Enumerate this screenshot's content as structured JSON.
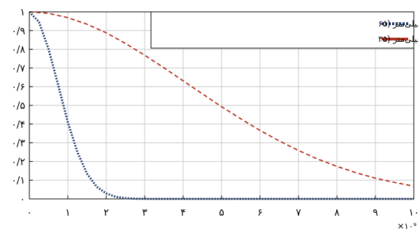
{
  "chart_data": {
    "type": "line",
    "title": "",
    "xlabel": "",
    "ylabel": "",
    "x_multiplier": "×۱۰⁹",
    "xlim": [
      0,
      10
    ],
    "ylim": [
      0,
      1
    ],
    "grid": true,
    "x_ticks": [
      {
        "value": 0,
        "label": "۰"
      },
      {
        "value": 1,
        "label": "۱"
      },
      {
        "value": 2,
        "label": "۲"
      },
      {
        "value": 3,
        "label": "۳"
      },
      {
        "value": 4,
        "label": "۴"
      },
      {
        "value": 5,
        "label": "۵"
      },
      {
        "value": 6,
        "label": "۶"
      },
      {
        "value": 7,
        "label": "۷"
      },
      {
        "value": 8,
        "label": "۸"
      },
      {
        "value": 9,
        "label": "۹"
      },
      {
        "value": 10,
        "label": "۱۰"
      }
    ],
    "y_ticks": [
      {
        "value": 0,
        "label": "۰"
      },
      {
        "value": 0.1,
        "label": "۰/۱"
      },
      {
        "value": 0.2,
        "label": "۰/۲"
      },
      {
        "value": 0.3,
        "label": "۰/۳"
      },
      {
        "value": 0.4,
        "label": "۰/۴"
      },
      {
        "value": 0.5,
        "label": "۰/۵"
      },
      {
        "value": 0.6,
        "label": "۰/۶"
      },
      {
        "value": 0.7,
        "label": "۰/۷"
      },
      {
        "value": 0.8,
        "label": "۰/۸"
      },
      {
        "value": 0.9,
        "label": "۰/۹"
      },
      {
        "value": 1,
        "label": "۱"
      }
    ],
    "legend_position": "top-right",
    "series": [
      {
        "name": "فاکتور شکل خوشه الکترونی با طول ۵۰ میلی‌متر (۶۵",
        "color": "#1f3a6e",
        "style": "dotted",
        "x": [
          0,
          0.25,
          0.5,
          0.75,
          1.0,
          1.25,
          1.5,
          1.75,
          2.0,
          2.25,
          2.5,
          2.75,
          3.0,
          3.25,
          3.5,
          4.0,
          5.0,
          6.0,
          7.0,
          8.0,
          9.0,
          10.0
        ],
        "y": [
          1.0,
          0.946,
          0.801,
          0.608,
          0.411,
          0.249,
          0.135,
          0.065,
          0.029,
          0.011,
          0.004,
          0.001,
          0.0004,
          0.0001,
          0.0,
          0.0,
          0.0,
          0.0,
          0.0,
          0.0,
          0.0,
          0.0
        ]
      },
      {
        "name": "فاکتور شکل خوشه الکترونی با طول ۱۰ میلی‌متر (۳۵",
        "color": "#b5301e",
        "style": "dashed",
        "x": [
          0,
          0.5,
          1.0,
          1.5,
          2.0,
          2.5,
          3.0,
          3.5,
          4.0,
          4.5,
          5.0,
          5.5,
          6.0,
          6.5,
          7.0,
          7.5,
          8.0,
          8.5,
          9.0,
          9.5,
          10.0
        ],
        "y": [
          1.0,
          0.992,
          0.969,
          0.934,
          0.888,
          0.831,
          0.768,
          0.701,
          0.631,
          0.562,
          0.493,
          0.428,
          0.366,
          0.31,
          0.259,
          0.213,
          0.174,
          0.14,
          0.111,
          0.088,
          0.068
        ]
      }
    ]
  }
}
